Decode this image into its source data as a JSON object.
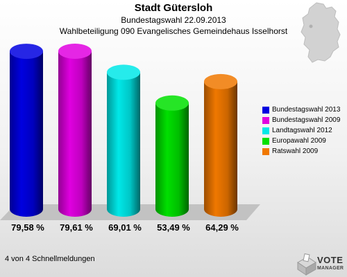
{
  "header": {
    "title": "Stadt Gütersloh",
    "subtitle1": "Bundestagswahl 22.09.2013",
    "subtitle2": "Wahlbeteiligung 090 Evangelisches Gemeindehaus Isselhorst"
  },
  "footer": {
    "text": "4 von 4 Schnellmeldungen"
  },
  "logo": {
    "line1": "VOTE",
    "line2": "MANAGER"
  },
  "map_icon": "germany-map-icon",
  "chart_data": {
    "type": "bar",
    "title": "Stadt Gütersloh",
    "subtitle": "Bundestagswahl 22.09.2013 / Wahlbeteiligung 090 Evangelisches Gemeindehaus Isselhorst",
    "xlabel": "",
    "ylabel": "",
    "ylim": [
      0,
      79.61
    ],
    "grid": false,
    "legend_position": "right",
    "categories": [
      "Bundestagswahl 2013",
      "Bundestagswahl 2009",
      "Landtagswahl 2012",
      "Europawahl 2009",
      "Ratswahl 2009"
    ],
    "values": [
      79.58,
      79.61,
      69.01,
      53.49,
      64.29
    ],
    "value_labels": [
      "79,58 %",
      "79,61 %",
      "69,01 %",
      "53,49 %",
      "64,29 %"
    ],
    "colors": [
      "#0000e0",
      "#e000e0",
      "#00e8e8",
      "#00e000",
      "#f07800"
    ]
  }
}
